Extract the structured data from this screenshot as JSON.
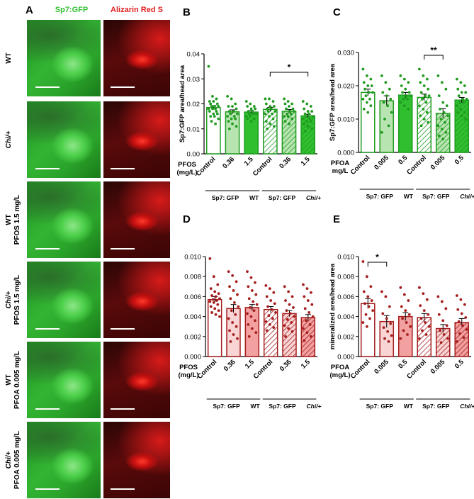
{
  "panelA": {
    "letter": "A",
    "col_headers": [
      "Sp7:GFP",
      "Alizarin Red S"
    ],
    "col_colors": [
      "#2fbf2f",
      "#e02020"
    ],
    "rows": [
      {
        "label1": "WT",
        "label2": ""
      },
      {
        "label1": "Chi/+",
        "label2": ""
      },
      {
        "label1": "WT",
        "label2": "PFOS 1.5 mg/L"
      },
      {
        "label1": "Chi/+",
        "label2": "PFOS 1.5 mg/L"
      },
      {
        "label1": "WT",
        "label2": "PFOA 0.005 mg/L"
      },
      {
        "label1": "Chi/+",
        "label2": "PFOA 0.005 mg/L"
      }
    ]
  },
  "chart_data": [
    {
      "panel": "B",
      "type": "bar",
      "ylabel": "Sp7:GFP area/head area",
      "ylim": [
        0,
        0.04
      ],
      "yticks": [
        "0.00",
        "0.01",
        "0.02",
        "0.03",
        "0.04"
      ],
      "treatment_label": "PFOS",
      "treatment_unit": "(mg/L)",
      "categories": [
        "Control",
        "0.36",
        "1.5",
        "Control",
        "0.36",
        "1.5"
      ],
      "values": [
        0.0185,
        0.0168,
        0.0167,
        0.0178,
        0.017,
        0.0152
      ],
      "errors": [
        0.0008,
        0.0008,
        0.0006,
        0.0008,
        0.0007,
        0.0006
      ],
      "group_labels": [
        {
          "a": "Sp7: GFP",
          "b": "WT"
        },
        {
          "a": "Sp7: GFP",
          "b": "Chi/+"
        }
      ],
      "significance": [
        {
          "from": 3,
          "to": 5,
          "label": "*"
        }
      ],
      "color": "#1f9b1f",
      "light_fill": "#b7e4b0",
      "mid_fill": "#2fbf2f",
      "points": [
        [
          0.035,
          0.023,
          0.022,
          0.021,
          0.021,
          0.02,
          0.02,
          0.019,
          0.019,
          0.019,
          0.018,
          0.018,
          0.018,
          0.017,
          0.017,
          0.016,
          0.016,
          0.015,
          0.015,
          0.014,
          0.013,
          0.012
        ],
        [
          0.023,
          0.022,
          0.02,
          0.019,
          0.019,
          0.018,
          0.017,
          0.017,
          0.016,
          0.016,
          0.015,
          0.015,
          0.014,
          0.014,
          0.013,
          0.012,
          0.011,
          0.01
        ],
        [
          0.021,
          0.02,
          0.019,
          0.019,
          0.018,
          0.018,
          0.017,
          0.017,
          0.016,
          0.016,
          0.016,
          0.015,
          0.015,
          0.014,
          0.014,
          0.013
        ],
        [
          0.022,
          0.022,
          0.021,
          0.02,
          0.019,
          0.019,
          0.018,
          0.018,
          0.017,
          0.017,
          0.016,
          0.016,
          0.015,
          0.014,
          0.013,
          0.012,
          0.011,
          0.01
        ],
        [
          0.022,
          0.021,
          0.02,
          0.02,
          0.019,
          0.018,
          0.018,
          0.017,
          0.017,
          0.016,
          0.016,
          0.015,
          0.015,
          0.014,
          0.013,
          0.012
        ],
        [
          0.021,
          0.02,
          0.019,
          0.018,
          0.017,
          0.017,
          0.016,
          0.016,
          0.015,
          0.015,
          0.014,
          0.014,
          0.013,
          0.013,
          0.012,
          0.011,
          0.01,
          0.009
        ]
      ]
    },
    {
      "panel": "C",
      "type": "bar",
      "ylabel": "Sp7:GFP area/head area",
      "ylim": [
        0,
        0.03
      ],
      "yticks": [
        "0.000",
        "0.010",
        "0.020",
        "0.030"
      ],
      "treatment_label": "PFOA",
      "treatment_unit": "mg/L",
      "categories": [
        "Control",
        "0.005",
        "0.5",
        "Control",
        "0.005",
        "0.5"
      ],
      "values": [
        0.018,
        0.0155,
        0.0172,
        0.0165,
        0.0117,
        0.0157
      ],
      "errors": [
        0.001,
        0.0015,
        0.0008,
        0.001,
        0.0014,
        0.0008
      ],
      "group_labels": [
        {
          "a": "Sp7: GFP",
          "b": "WT"
        },
        {
          "a": "Sp7: GFP",
          "b": "Chi/+"
        }
      ],
      "significance": [
        {
          "from": 3,
          "to": 4,
          "label": "**"
        }
      ],
      "color": "#1f9b1f",
      "light_fill": "#b7e4b0",
      "mid_fill": "#2fbf2f",
      "points": [
        [
          0.025,
          0.023,
          0.022,
          0.021,
          0.02,
          0.02,
          0.019,
          0.018,
          0.018,
          0.017,
          0.016,
          0.016,
          0.015,
          0.014,
          0.013,
          0.012
        ],
        [
          0.023,
          0.021,
          0.019,
          0.018,
          0.017,
          0.016,
          0.015,
          0.014,
          0.012,
          0.01,
          0.008,
          0.006
        ],
        [
          0.023,
          0.022,
          0.021,
          0.02,
          0.019,
          0.018,
          0.018,
          0.017,
          0.017,
          0.016,
          0.016,
          0.015,
          0.014,
          0.013
        ],
        [
          0.025,
          0.023,
          0.022,
          0.021,
          0.02,
          0.019,
          0.018,
          0.017,
          0.017,
          0.016,
          0.015,
          0.014,
          0.013,
          0.012,
          0.011,
          0.01,
          0.009,
          0.008
        ],
        [
          0.023,
          0.021,
          0.019,
          0.017,
          0.015,
          0.014,
          0.013,
          0.012,
          0.011,
          0.01,
          0.009,
          0.008,
          0.007,
          0.006,
          0.005,
          0.004
        ],
        [
          0.022,
          0.021,
          0.02,
          0.019,
          0.018,
          0.018,
          0.017,
          0.016,
          0.016,
          0.015,
          0.015,
          0.014,
          0.013,
          0.012,
          0.012,
          0.011,
          0.01
        ]
      ]
    },
    {
      "panel": "D",
      "type": "bar",
      "ylabel": "",
      "ylim": [
        0,
        0.01
      ],
      "yticks": [
        "0.000",
        "0.002",
        "0.004",
        "0.006",
        "0.008",
        "0.010"
      ],
      "treatment_label": "PFOS",
      "treatment_unit": "(mg/L)",
      "categories": [
        "Control",
        "0.36",
        "1.5",
        "Control",
        "0.36",
        "1.5"
      ],
      "values": [
        0.0057,
        0.0048,
        0.0049,
        0.0047,
        0.0043,
        0.0039
      ],
      "errors": [
        0.0003,
        0.0004,
        0.0003,
        0.0003,
        0.0003,
        0.0003
      ],
      "group_labels": [
        {
          "a": "Sp7: GFP",
          "b": "WT"
        },
        {
          "a": "Sp7: GFP",
          "b": "Chi/+"
        }
      ],
      "significance": [],
      "color": "#a51d1d",
      "light_fill": "#f9d4d4",
      "mid_fill": "#f2a0a0",
      "points": [
        [
          0.0098,
          0.008,
          0.0072,
          0.0068,
          0.0065,
          0.0063,
          0.0061,
          0.006,
          0.0058,
          0.0057,
          0.0056,
          0.0055,
          0.0054,
          0.0052,
          0.005,
          0.0048,
          0.0046,
          0.0044,
          0.0042,
          0.004
        ],
        [
          0.0085,
          0.0081,
          0.0075,
          0.007,
          0.0066,
          0.0062,
          0.0058,
          0.0054,
          0.005,
          0.0046,
          0.0042,
          0.0038,
          0.0034,
          0.003,
          0.0026,
          0.0022,
          0.0018,
          0.0015
        ],
        [
          0.0085,
          0.0079,
          0.0074,
          0.007,
          0.0066,
          0.0062,
          0.0058,
          0.0055,
          0.0052,
          0.0049,
          0.0046,
          0.0043,
          0.004,
          0.0036,
          0.0032,
          0.0028,
          0.0024,
          0.002
        ],
        [
          0.0071,
          0.0068,
          0.0064,
          0.006,
          0.0056,
          0.0053,
          0.005,
          0.0047,
          0.0044,
          0.0041,
          0.0038,
          0.0035,
          0.0032,
          0.0029,
          0.0026
        ],
        [
          0.007,
          0.0065,
          0.006,
          0.0056,
          0.0052,
          0.0049,
          0.0046,
          0.0043,
          0.004,
          0.0037,
          0.0034,
          0.0031,
          0.0028,
          0.0025,
          0.002
        ],
        [
          0.0072,
          0.0068,
          0.0064,
          0.006,
          0.0056,
          0.0052,
          0.0048,
          0.0044,
          0.004,
          0.0036,
          0.0032,
          0.0028,
          0.0024,
          0.002,
          0.0016
        ]
      ]
    },
    {
      "panel": "E",
      "type": "bar",
      "ylabel": "mineralized area/head area",
      "ylim": [
        0,
        0.01
      ],
      "yticks": [
        "0.000",
        "0.002",
        "0.004",
        "0.006",
        "0.008",
        "0.010"
      ],
      "treatment_label": "PFOA",
      "treatment_unit": "(mg/L)",
      "categories": [
        "Control",
        "0.005",
        "0.5",
        "Control",
        "0.005",
        "0.5"
      ],
      "values": [
        0.0053,
        0.0035,
        0.004,
        0.0039,
        0.0028,
        0.0034
      ],
      "errors": [
        0.0005,
        0.0006,
        0.0004,
        0.0004,
        0.0004,
        0.0004
      ],
      "group_labels": [
        {
          "a": "Sp7: GFP",
          "b": "WT"
        },
        {
          "a": "Sp7: GFP",
          "b": "Chi/+"
        }
      ],
      "significance": [
        {
          "from": 0,
          "to": 1,
          "label": "*"
        }
      ],
      "color": "#a51d1d",
      "light_fill": "#f9d4d4",
      "mid_fill": "#f2a0a0",
      "points": [
        [
          0.0095,
          0.008,
          0.007,
          0.0065,
          0.006,
          0.0056,
          0.0053,
          0.005,
          0.0046,
          0.0042,
          0.0038,
          0.0034,
          0.003
        ],
        [
          0.0065,
          0.006,
          0.005,
          0.0043,
          0.0038,
          0.0033,
          0.0029,
          0.0025,
          0.0021,
          0.0018,
          0.0015
        ],
        [
          0.0069,
          0.0062,
          0.0056,
          0.005,
          0.0046,
          0.0042,
          0.0038,
          0.0034,
          0.003,
          0.0026,
          0.0022,
          0.0018
        ],
        [
          0.0069,
          0.0063,
          0.0057,
          0.0051,
          0.0046,
          0.0042,
          0.0038,
          0.0034,
          0.003,
          0.0026,
          0.0022,
          0.0018
        ],
        [
          0.006,
          0.0055,
          0.0048,
          0.0042,
          0.0036,
          0.0031,
          0.0026,
          0.0022,
          0.0018,
          0.0014
        ],
        [
          0.0061,
          0.0057,
          0.0052,
          0.0047,
          0.0043,
          0.0039,
          0.0035,
          0.0031,
          0.0027,
          0.0023,
          0.0019,
          0.0015
        ]
      ]
    }
  ]
}
